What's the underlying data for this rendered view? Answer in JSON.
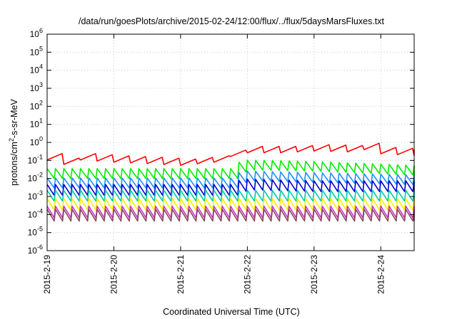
{
  "chart_data": {
    "type": "line",
    "title": "/data/run/goesPlots/archive/2015-02-24/12:00/flux/../flux/5daysMarsFluxes.txt",
    "xlabel": "Coordinated Universal Time (UTC)",
    "ylabel": "protons/cm2-s-sr-MeV",
    "ylabel_parts": {
      "base": "protons/cm",
      "sup": "2",
      "rest": "-s-sr-MeV"
    },
    "y_scale": "log",
    "ylim": [
      1e-06,
      1000000.0
    ],
    "yticks": [
      {
        "exp": -6,
        "base": "10",
        "sup": "-6"
      },
      {
        "exp": -5,
        "base": "10",
        "sup": "-5"
      },
      {
        "exp": -4,
        "base": "10",
        "sup": "-4"
      },
      {
        "exp": -3,
        "base": "10",
        "sup": "-3"
      },
      {
        "exp": -2,
        "base": "10",
        "sup": "-2"
      },
      {
        "exp": -1,
        "base": "10",
        "sup": "-1"
      },
      {
        "exp": 0,
        "base": "10",
        "sup": "0"
      },
      {
        "exp": 1,
        "base": "10",
        "sup": "1"
      },
      {
        "exp": 2,
        "base": "10",
        "sup": "2"
      },
      {
        "exp": 3,
        "base": "10",
        "sup": "3"
      },
      {
        "exp": 4,
        "base": "10",
        "sup": "4"
      },
      {
        "exp": 5,
        "base": "10",
        "sup": "5"
      },
      {
        "exp": 6,
        "base": "10",
        "sup": "6"
      }
    ],
    "x_axis": "date",
    "xlim": [
      "2015-02-19T00:00",
      "2015-02-24T12:00"
    ],
    "xticks": [
      "2015-2-19",
      "2015-2-20",
      "2015-2-21",
      "2015-2-22",
      "2015-2-23",
      "2015-2-24"
    ],
    "xtick_dates": [
      "2015-02-19T00:00",
      "2015-02-20T00:00",
      "2015-02-21T00:00",
      "2015-02-22T00:00",
      "2015-02-23T00:00",
      "2015-02-24T00:00"
    ],
    "grid": true,
    "legend": "none",
    "sawtooth_period_hours": 3,
    "series": [
      {
        "color": "#ff0000",
        "pattern": "ramp-rising",
        "x": [
          "2015-02-19T00:00",
          "2015-02-19T06:00",
          "2015-02-19T12:00",
          "2015-02-20T00:00",
          "2015-02-20T12:00",
          "2015-02-21T00:00",
          "2015-02-21T12:00",
          "2015-02-21T18:00",
          "2015-02-22T00:00",
          "2015-02-22T12:00",
          "2015-02-23T00:00",
          "2015-02-23T12:00",
          "2015-02-23T18:00",
          "2015-02-24T00:00",
          "2015-02-24T12:00"
        ],
        "values": [
          0.16,
          0.09,
          0.16,
          0.12,
          0.1,
          0.08,
          0.12,
          0.25,
          0.4,
          0.4,
          0.5,
          0.45,
          0.6,
          0.35,
          0.28
        ],
        "amplitude_decades": 0.5
      },
      {
        "color": "#00ee00",
        "pattern": "sawtooth",
        "x": [
          "2015-02-19T00:00",
          "2015-02-21T18:00",
          "2015-02-21T22:00",
          "2015-02-23T00:00",
          "2015-02-24T12:00"
        ],
        "values": [
          0.02,
          0.02,
          0.06,
          0.05,
          0.03
        ],
        "amplitude_decades": 0.55
      },
      {
        "color": "#1e90ff",
        "pattern": "sawtooth",
        "x": [
          "2015-02-19T00:00",
          "2015-02-21T18:00",
          "2015-02-21T22:00",
          "2015-02-23T00:00",
          "2015-02-24T12:00"
        ],
        "values": [
          0.006,
          0.006,
          0.015,
          0.012,
          0.009
        ],
        "amplitude_decades": 0.55
      },
      {
        "color": "#0000cc",
        "pattern": "sawtooth",
        "x": [
          "2015-02-19T00:00",
          "2015-02-21T18:00",
          "2015-02-21T22:00",
          "2015-02-23T00:00",
          "2015-02-24T12:00"
        ],
        "values": [
          0.0025,
          0.0025,
          0.005,
          0.004,
          0.004
        ],
        "amplitude_decades": 0.6
      },
      {
        "color": "#00ccaa",
        "pattern": "sawtooth",
        "x": [
          "2015-02-19T00:00",
          "2015-02-24T12:00"
        ],
        "values": [
          0.0012,
          0.0012
        ],
        "amplitude_decades": 0.6
      },
      {
        "color": "#ffee00",
        "pattern": "sawtooth",
        "x": [
          "2015-02-19T00:00",
          "2015-02-24T12:00"
        ],
        "values": [
          0.0004,
          0.0004
        ],
        "amplitude_decades": 0.65
      },
      {
        "color": "#cc33cc",
        "pattern": "sawtooth",
        "x": [
          "2015-02-19T00:00",
          "2015-02-24T12:00"
        ],
        "values": [
          0.00015,
          0.00015
        ],
        "amplitude_decades": 0.65
      },
      {
        "color": "#8b4560",
        "pattern": "sawtooth",
        "x": [
          "2015-02-19T00:00",
          "2015-02-24T12:00"
        ],
        "values": [
          0.0001,
          0.0001
        ],
        "amplitude_decades": 0.65
      }
    ]
  }
}
